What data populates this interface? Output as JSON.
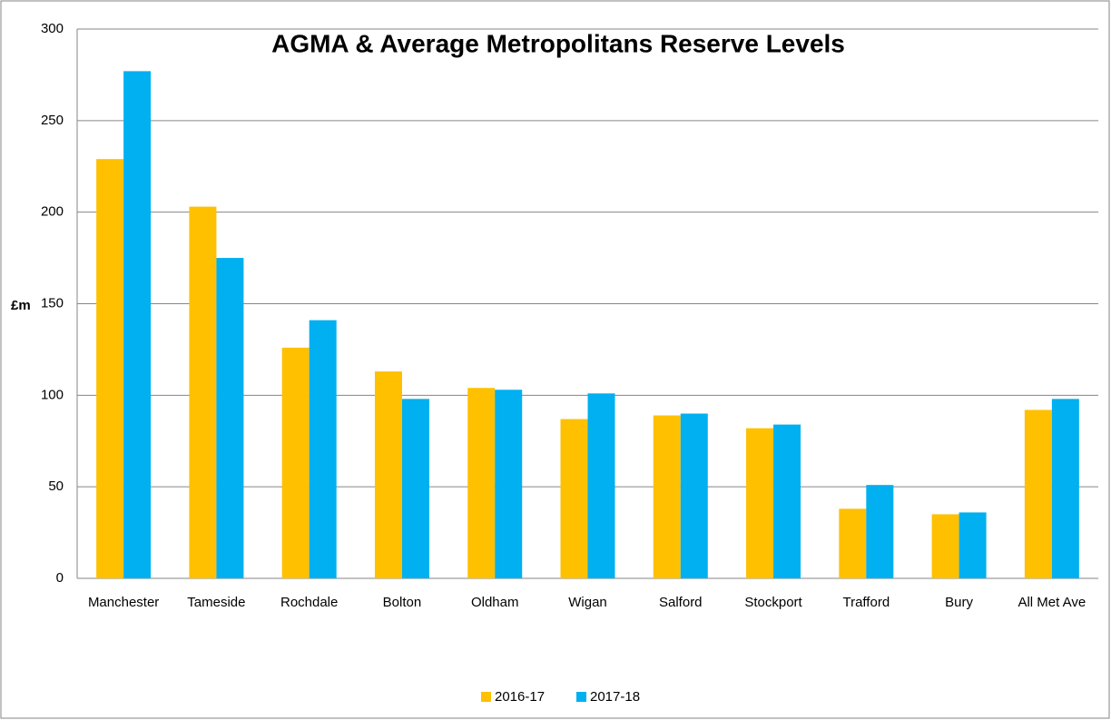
{
  "chart_data": {
    "type": "bar",
    "title": "AGMA & Average Metropolitans Reserve Levels",
    "y_label": "£m",
    "categories": [
      "Manchester",
      "Tameside",
      "Rochdale",
      "Bolton",
      "Oldham",
      "Wigan",
      "Salford",
      "Stockport",
      "Trafford",
      "Bury",
      "All Met Ave"
    ],
    "series": [
      {
        "name": "2016-17",
        "color": "#FFC000",
        "values": [
          229,
          203,
          126,
          113,
          104,
          87,
          89,
          82,
          38,
          35,
          92
        ]
      },
      {
        "name": "2017-18",
        "color": "#00B0F0",
        "values": [
          277,
          175,
          141,
          98,
          103,
          101,
          90,
          84,
          51,
          36,
          98
        ]
      }
    ],
    "ylim": [
      0,
      300
    ],
    "yticks": [
      0,
      50,
      100,
      150,
      200,
      250,
      300
    ],
    "grid": true,
    "legend": "bottom"
  }
}
